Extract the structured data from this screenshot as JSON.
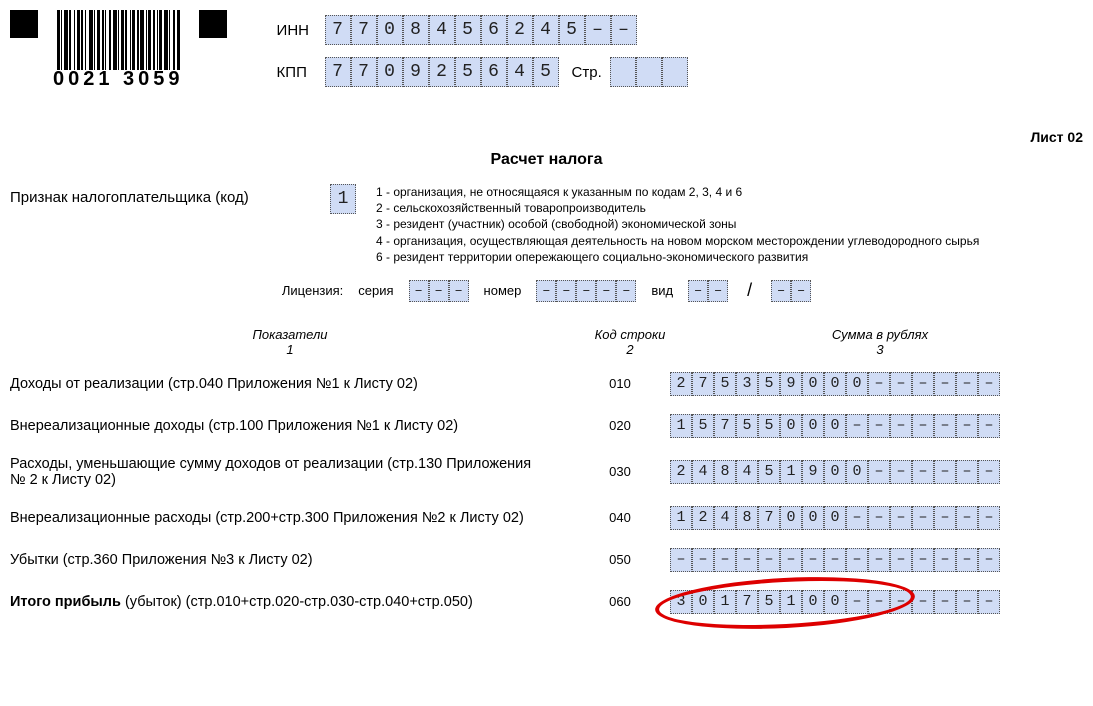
{
  "barcode_text": "0021 3059",
  "inn": {
    "label": "ИНН",
    "value": "7708456245--"
  },
  "kpp": {
    "label": "КПП",
    "value": "770925645",
    "page_label": "Стр.",
    "page_cells": 3
  },
  "sheet_label": "Лист 02",
  "title": "Расчет налога",
  "taxpayer": {
    "label": "Признак налогоплательщика (код)",
    "code": "1",
    "legend": [
      "1 - организация, не относящаяся к указанным по кодам 2, 3, 4 и 6",
      "2 - сельскохозяйственный товаропроизводитель",
      "3 - резидент (участник) особой (свободной) экономической зоны",
      "4 - организация, осуществляющая деятельность на новом морском месторождении углеводородного сырья",
      "6 - резидент территории опережающего социально-экономического развития"
    ]
  },
  "license": {
    "label": "Лицензия:",
    "series_label": "серия",
    "series_cells": 3,
    "number_label": "номер",
    "number_cells": 5,
    "type_label": "вид",
    "type_cells_a": 2,
    "type_cells_b": 2
  },
  "columns": {
    "c1": "Показатели",
    "c1n": "1",
    "c2": "Код строки",
    "c2n": "2",
    "c3": "Сумма в рублях",
    "c3n": "3"
  },
  "amount_width": 15,
  "rows": [
    {
      "name": "Доходы от реализации (стр.040 Приложения №1 к Листу 02)",
      "code": "010",
      "value": "275359000",
      "bold": false,
      "circled": false
    },
    {
      "name": "Внереализационные доходы (стр.100 Приложения №1 к Листу 02)",
      "code": "020",
      "value": "15755000",
      "bold": false,
      "circled": false
    },
    {
      "name": "Расходы, уменьшающие сумму доходов от реализации (стр.130 Приложения № 2 к Листу 02)",
      "code": "030",
      "value": "248451900",
      "bold": false,
      "circled": false
    },
    {
      "name": "Внереализационные расходы (стр.200+стр.300 Приложения №2 к Листу 02)",
      "code": "040",
      "value": "12487000",
      "bold": false,
      "circled": false
    },
    {
      "name": "Убытки (стр.360 Приложения №3 к Листу 02)",
      "code": "050",
      "value": "",
      "bold": false,
      "circled": false
    },
    {
      "name": "Итого прибыль (убыток) (стр.010+стр.020-стр.030-стр.040+стр.050)",
      "code": "060",
      "value": "30175100",
      "bold": true,
      "circled": true
    }
  ],
  "colors": {
    "cell_bg": "#d0dcf5",
    "circle": "#d00000"
  }
}
